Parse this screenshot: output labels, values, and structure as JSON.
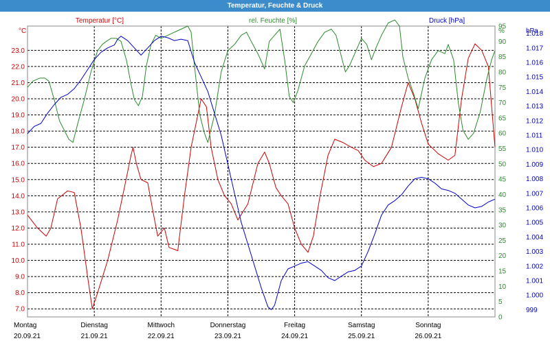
{
  "window_title": "Temperatur, Feuchte & Druck",
  "colors": {
    "title_bar": "#3c8ccb",
    "temperature": "#cc0000",
    "humidity": "#2a8a2a",
    "pressure": "#0000cc",
    "grid": "#000000"
  },
  "chart_data": {
    "type": "line",
    "grid": true,
    "grid_style": "dashed",
    "series_titles": {
      "temperature": "Temperatur [°C]",
      "humidity": "rel. Feuchte [%]",
      "pressure": "Druck [hPa]"
    },
    "axes": {
      "temperature": {
        "side": "left",
        "unit_label": "°C",
        "range": [
          6.5,
          24.5
        ],
        "ticks": [
          "7.0",
          "8.0",
          "9.0",
          "10.0",
          "11.0",
          "12.0",
          "13.0",
          "14.0",
          "15.0",
          "16.0",
          "17.0",
          "18.0",
          "19.0",
          "20.0",
          "21.0",
          "22.0",
          "23.0"
        ]
      },
      "humidity": {
        "side": "right",
        "unit_label": "%",
        "range": [
          0,
          95
        ],
        "ticks": [
          "0",
          "5",
          "10",
          "15",
          "20",
          "25",
          "30",
          "35",
          "40",
          "45",
          "50",
          "55",
          "60",
          "65",
          "70",
          "75",
          "80",
          "85",
          "90",
          "95"
        ]
      },
      "pressure": {
        "side": "right",
        "unit_label": "hPa",
        "range": [
          0.9985,
          1.0185
        ],
        "ticks": [
          "999",
          "1.000",
          "1.001",
          "1.002",
          "1.003",
          "1.004",
          "1.005",
          "1.006",
          "1.007",
          "1.008",
          "1.009",
          "1.010",
          "1.011",
          "1.012",
          "1.013",
          "1.014",
          "1.015",
          "1.016",
          "1.017",
          "1.018"
        ]
      }
    },
    "x_axis": {
      "unit": "day index",
      "range": [
        0,
        7
      ],
      "days": [
        {
          "name": "Montag",
          "date": "20.09.21"
        },
        {
          "name": "Dienstag",
          "date": "21.09.21"
        },
        {
          "name": "Mittwoch",
          "date": "22.09.21"
        },
        {
          "name": "Donnerstag",
          "date": "23.09.21"
        },
        {
          "name": "Freitag",
          "date": "24.09.21"
        },
        {
          "name": "Samstag",
          "date": "25.09.21"
        },
        {
          "name": "Sonntag",
          "date": "26.09.21"
        }
      ]
    },
    "series": [
      {
        "key": "temperature",
        "axis": "temperature",
        "points": [
          [
            0.0,
            12.8
          ],
          [
            0.15,
            12.0
          ],
          [
            0.28,
            11.5
          ],
          [
            0.35,
            12.0
          ],
          [
            0.45,
            13.8
          ],
          [
            0.6,
            14.3
          ],
          [
            0.7,
            14.2
          ],
          [
            0.8,
            12.0
          ],
          [
            0.9,
            9.0
          ],
          [
            0.97,
            7.0
          ],
          [
            1.05,
            8.0
          ],
          [
            1.2,
            10.0
          ],
          [
            1.35,
            12.5
          ],
          [
            1.45,
            14.5
          ],
          [
            1.55,
            16.5
          ],
          [
            1.58,
            17.0
          ],
          [
            1.63,
            16.0
          ],
          [
            1.7,
            15.0
          ],
          [
            1.8,
            14.8
          ],
          [
            1.88,
            13.0
          ],
          [
            1.95,
            11.5
          ],
          [
            2.05,
            12.0
          ],
          [
            2.12,
            10.8
          ],
          [
            2.25,
            10.6
          ],
          [
            2.35,
            14.0
          ],
          [
            2.45,
            17.0
          ],
          [
            2.55,
            19.0
          ],
          [
            2.6,
            20.0
          ],
          [
            2.68,
            19.5
          ],
          [
            2.75,
            17.0
          ],
          [
            2.85,
            15.0
          ],
          [
            2.95,
            14.0
          ],
          [
            3.05,
            13.5
          ],
          [
            3.15,
            12.5
          ],
          [
            3.3,
            13.5
          ],
          [
            3.45,
            16.0
          ],
          [
            3.55,
            16.7
          ],
          [
            3.62,
            16.0
          ],
          [
            3.72,
            14.5
          ],
          [
            3.8,
            14.0
          ],
          [
            3.9,
            13.5
          ],
          [
            4.0,
            12.0
          ],
          [
            4.1,
            11.0
          ],
          [
            4.2,
            10.5
          ],
          [
            4.28,
            11.5
          ],
          [
            4.38,
            14.0
          ],
          [
            4.5,
            16.5
          ],
          [
            4.6,
            17.5
          ],
          [
            4.72,
            17.3
          ],
          [
            4.85,
            17.0
          ],
          [
            4.95,
            16.8
          ],
          [
            5.05,
            16.2
          ],
          [
            5.18,
            15.8
          ],
          [
            5.3,
            16.0
          ],
          [
            5.45,
            17.0
          ],
          [
            5.6,
            19.5
          ],
          [
            5.7,
            21.0
          ],
          [
            5.8,
            20.0
          ],
          [
            5.9,
            18.5
          ],
          [
            6.0,
            17.2
          ],
          [
            6.15,
            16.6
          ],
          [
            6.3,
            16.2
          ],
          [
            6.4,
            16.5
          ],
          [
            6.5,
            20.0
          ],
          [
            6.6,
            22.5
          ],
          [
            6.7,
            23.4
          ],
          [
            6.8,
            23.0
          ],
          [
            6.9,
            22.0
          ],
          [
            7.0,
            17.0
          ]
        ]
      },
      {
        "key": "humidity",
        "axis": "humidity",
        "points": [
          [
            0.0,
            75
          ],
          [
            0.08,
            77
          ],
          [
            0.18,
            78
          ],
          [
            0.26,
            78
          ],
          [
            0.32,
            77
          ],
          [
            0.4,
            71
          ],
          [
            0.48,
            64
          ],
          [
            0.55,
            61
          ],
          [
            0.62,
            58
          ],
          [
            0.68,
            57
          ],
          [
            0.75,
            63
          ],
          [
            0.85,
            71
          ],
          [
            0.95,
            80
          ],
          [
            1.05,
            87
          ],
          [
            1.12,
            89
          ],
          [
            1.18,
            90
          ],
          [
            1.25,
            91
          ],
          [
            1.33,
            91
          ],
          [
            1.4,
            90
          ],
          [
            1.48,
            84
          ],
          [
            1.55,
            76
          ],
          [
            1.6,
            71
          ],
          [
            1.66,
            69
          ],
          [
            1.72,
            72
          ],
          [
            1.78,
            82
          ],
          [
            1.85,
            89
          ],
          [
            1.92,
            92
          ],
          [
            2.0,
            91
          ],
          [
            2.1,
            92
          ],
          [
            2.2,
            93
          ],
          [
            2.3,
            94
          ],
          [
            2.4,
            95
          ],
          [
            2.45,
            93
          ],
          [
            2.5,
            82
          ],
          [
            2.58,
            66
          ],
          [
            2.65,
            60
          ],
          [
            2.7,
            57
          ],
          [
            2.8,
            66
          ],
          [
            2.9,
            80
          ],
          [
            3.0,
            87
          ],
          [
            3.1,
            89
          ],
          [
            3.2,
            92
          ],
          [
            3.28,
            93
          ],
          [
            3.35,
            90
          ],
          [
            3.45,
            86
          ],
          [
            3.55,
            81
          ],
          [
            3.62,
            90
          ],
          [
            3.7,
            92
          ],
          [
            3.78,
            94
          ],
          [
            3.85,
            84
          ],
          [
            3.92,
            72
          ],
          [
            3.98,
            70
          ],
          [
            4.05,
            74
          ],
          [
            4.15,
            82
          ],
          [
            4.25,
            86
          ],
          [
            4.35,
            90
          ],
          [
            4.45,
            93
          ],
          [
            4.55,
            94
          ],
          [
            4.62,
            92
          ],
          [
            4.7,
            85
          ],
          [
            4.76,
            80
          ],
          [
            4.82,
            82
          ],
          [
            4.9,
            86
          ],
          [
            5.0,
            91
          ],
          [
            5.08,
            89
          ],
          [
            5.15,
            84
          ],
          [
            5.22,
            88
          ],
          [
            5.3,
            92
          ],
          [
            5.4,
            96
          ],
          [
            5.5,
            97
          ],
          [
            5.57,
            95
          ],
          [
            5.62,
            85
          ],
          [
            5.7,
            78
          ],
          [
            5.78,
            73
          ],
          [
            5.85,
            68
          ],
          [
            5.95,
            78
          ],
          [
            6.05,
            84
          ],
          [
            6.15,
            87
          ],
          [
            6.25,
            86
          ],
          [
            6.3,
            89
          ],
          [
            6.38,
            84
          ],
          [
            6.45,
            70
          ],
          [
            6.52,
            61
          ],
          [
            6.6,
            58
          ],
          [
            6.68,
            60
          ],
          [
            6.78,
            67
          ],
          [
            6.88,
            78
          ],
          [
            6.95,
            84
          ],
          [
            7.0,
            87
          ]
        ]
      },
      {
        "key": "pressure",
        "axis": "pressure",
        "points": [
          [
            0.0,
            1.0111
          ],
          [
            0.1,
            1.0116
          ],
          [
            0.2,
            1.0118
          ],
          [
            0.3,
            1.0125
          ],
          [
            0.4,
            1.0131
          ],
          [
            0.5,
            1.0136
          ],
          [
            0.6,
            1.0138
          ],
          [
            0.7,
            1.0142
          ],
          [
            0.8,
            1.0148
          ],
          [
            0.9,
            1.0155
          ],
          [
            1.0,
            1.0162
          ],
          [
            1.1,
            1.0167
          ],
          [
            1.2,
            1.017
          ],
          [
            1.3,
            1.0172
          ],
          [
            1.35,
            1.0176
          ],
          [
            1.4,
            1.0178
          ],
          [
            1.5,
            1.0175
          ],
          [
            1.6,
            1.017
          ],
          [
            1.7,
            1.0165
          ],
          [
            1.8,
            1.017
          ],
          [
            1.9,
            1.0175
          ],
          [
            2.0,
            1.0178
          ],
          [
            2.1,
            1.0177
          ],
          [
            2.2,
            1.0175
          ],
          [
            2.3,
            1.0176
          ],
          [
            2.4,
            1.0175
          ],
          [
            2.5,
            1.016
          ],
          [
            2.6,
            1.015
          ],
          [
            2.7,
            1.014
          ],
          [
            2.8,
            1.0125
          ],
          [
            2.9,
            1.011
          ],
          [
            3.0,
            1.009
          ],
          [
            3.1,
            1.007
          ],
          [
            3.2,
            1.005
          ],
          [
            3.3,
            1.0035
          ],
          [
            3.4,
            1.002
          ],
          [
            3.5,
            1.0005
          ],
          [
            3.6,
            0.9992
          ],
          [
            3.65,
            0.999
          ],
          [
            3.7,
            0.9993
          ],
          [
            3.8,
            1.001
          ],
          [
            3.9,
            1.0018
          ],
          [
            4.0,
            1.002
          ],
          [
            4.1,
            1.0022
          ],
          [
            4.2,
            1.0023
          ],
          [
            4.3,
            1.002
          ],
          [
            4.4,
            1.0017
          ],
          [
            4.5,
            1.0012
          ],
          [
            4.6,
            1.001
          ],
          [
            4.7,
            1.0013
          ],
          [
            4.8,
            1.0016
          ],
          [
            4.9,
            1.0017
          ],
          [
            5.0,
            1.002
          ],
          [
            5.1,
            1.003
          ],
          [
            5.2,
            1.0042
          ],
          [
            5.3,
            1.0055
          ],
          [
            5.4,
            1.0062
          ],
          [
            5.5,
            1.0065
          ],
          [
            5.6,
            1.0069
          ],
          [
            5.7,
            1.0075
          ],
          [
            5.8,
            1.008
          ],
          [
            5.9,
            1.0081
          ],
          [
            6.0,
            1.008
          ],
          [
            6.1,
            1.0077
          ],
          [
            6.2,
            1.0073
          ],
          [
            6.3,
            1.0072
          ],
          [
            6.4,
            1.007
          ],
          [
            6.5,
            1.0066
          ],
          [
            6.6,
            1.0062
          ],
          [
            6.7,
            1.006
          ],
          [
            6.8,
            1.0061
          ],
          [
            6.9,
            1.0064
          ],
          [
            7.0,
            1.0066
          ]
        ]
      }
    ]
  }
}
